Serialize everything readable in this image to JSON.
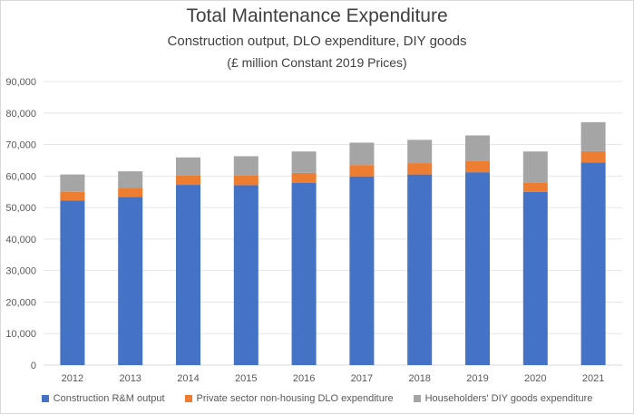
{
  "chart_data": {
    "type": "bar",
    "stacked": true,
    "title": "Total Maintenance Expenditure",
    "subtitle": "Construction output, DLO expenditure, DIY goods",
    "subtitle2": "(£ million Constant 2019 Prices)",
    "xlabel": "",
    "ylabel": "",
    "categories": [
      "2012",
      "2013",
      "2014",
      "2015",
      "2016",
      "2017",
      "2018",
      "2019",
      "2020",
      "2021"
    ],
    "ylim": [
      0,
      90000
    ],
    "yticks": [
      "0",
      "10,000",
      "20,000",
      "30,000",
      "40,000",
      "50,000",
      "60,000",
      "70,000",
      "80,000",
      "90,000"
    ],
    "ytick_values": [
      0,
      10000,
      20000,
      30000,
      40000,
      50000,
      60000,
      70000,
      80000,
      90000
    ],
    "grid": true,
    "legend_position": "bottom",
    "series": [
      {
        "name": "Construction R&M output",
        "color": "#4472c4",
        "values": [
          52200,
          53400,
          57200,
          57100,
          57800,
          59900,
          60500,
          61200,
          55000,
          64300
        ]
      },
      {
        "name": "Private sector non-housing DLO expenditure",
        "color": "#ed7d31",
        "values": [
          2800,
          2800,
          3100,
          3100,
          3200,
          3600,
          3600,
          3700,
          2800,
          3600
        ]
      },
      {
        "name": "Householders' DIY goods expenditure",
        "color": "#a5a5a5",
        "values": [
          5500,
          5300,
          5600,
          6100,
          6800,
          7100,
          7400,
          8000,
          10000,
          9200
        ]
      }
    ]
  }
}
